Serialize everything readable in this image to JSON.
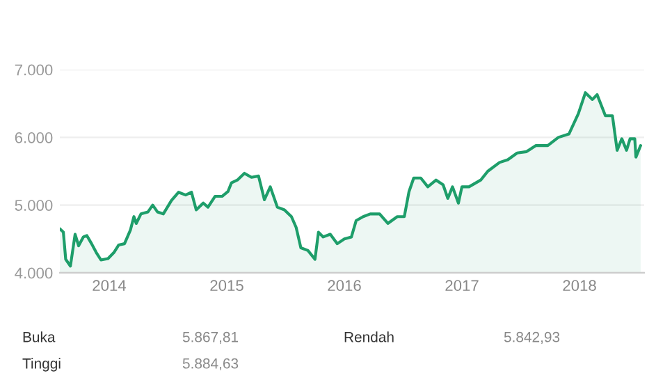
{
  "chart_data": {
    "type": "area",
    "color": "#1e9e6a",
    "x": [
      2013.58,
      2013.61,
      2013.63,
      2013.67,
      2013.71,
      2013.74,
      2013.78,
      2013.81,
      2013.85,
      2013.89,
      2013.93,
      2013.99,
      2014.04,
      2014.08,
      2014.13,
      2014.18,
      2014.21,
      2014.23,
      2014.27,
      2014.33,
      2014.37,
      2014.41,
      2014.46,
      2014.53,
      2014.59,
      2014.65,
      2014.7,
      2014.74,
      2014.8,
      2014.84,
      2014.9,
      2014.96,
      2015.01,
      2015.04,
      2015.09,
      2015.15,
      2015.21,
      2015.27,
      2015.32,
      2015.37,
      2015.43,
      2015.49,
      2015.55,
      2015.59,
      2015.63,
      2015.69,
      2015.75,
      2015.78,
      2015.82,
      2015.88,
      2015.94,
      2016.0,
      2016.06,
      2016.1,
      2016.16,
      2016.22,
      2016.3,
      2016.37,
      2016.45,
      2016.51,
      2016.55,
      2016.59,
      2016.65,
      2016.71,
      2016.78,
      2016.84,
      2016.88,
      2016.92,
      2016.97,
      2017.0,
      2017.06,
      2017.16,
      2017.22,
      2017.32,
      2017.39,
      2017.47,
      2017.55,
      2017.63,
      2017.73,
      2017.82,
      2017.91,
      2017.99,
      2018.05,
      2018.11,
      2018.15,
      2018.22,
      2018.28,
      2018.32,
      2018.36,
      2018.4,
      2018.43,
      2018.47,
      2018.48,
      2018.52
    ],
    "values": [
      4650,
      4600,
      4200,
      4100,
      4570,
      4400,
      4530,
      4550,
      4430,
      4300,
      4190,
      4210,
      4300,
      4410,
      4430,
      4630,
      4830,
      4730,
      4870,
      4900,
      5000,
      4900,
      4870,
      5070,
      5190,
      5150,
      5190,
      4930,
      5030,
      4970,
      5130,
      5130,
      5200,
      5330,
      5370,
      5470,
      5410,
      5430,
      5080,
      5270,
      4970,
      4930,
      4830,
      4670,
      4370,
      4330,
      4200,
      4600,
      4530,
      4570,
      4430,
      4500,
      4530,
      4770,
      4830,
      4870,
      4870,
      4730,
      4830,
      4830,
      5200,
      5400,
      5400,
      5270,
      5370,
      5300,
      5100,
      5270,
      5030,
      5270,
      5270,
      5370,
      5500,
      5630,
      5670,
      5770,
      5790,
      5880,
      5880,
      6000,
      6050,
      6350,
      6660,
      6560,
      6630,
      6320,
      6320,
      5810,
      5980,
      5810,
      5980,
      5980,
      5710,
      5880
    ],
    "xlim": [
      2013.58,
      2018.55
    ],
    "xticks": [
      2014,
      2015,
      2016,
      2017,
      2018
    ],
    "ylim": [
      4000,
      7000
    ],
    "yticks": [
      {
        "value": 4000,
        "label": "4.000"
      },
      {
        "value": 5000,
        "label": "5.000"
      },
      {
        "value": 6000,
        "label": "6.000"
      },
      {
        "value": 7000,
        "label": "7.000"
      }
    ],
    "grid": "y",
    "annotations": [
      "Buka",
      "5.867,81",
      "Rendah",
      "5.842,93",
      "Tinggi",
      "5.884,63"
    ]
  }
}
